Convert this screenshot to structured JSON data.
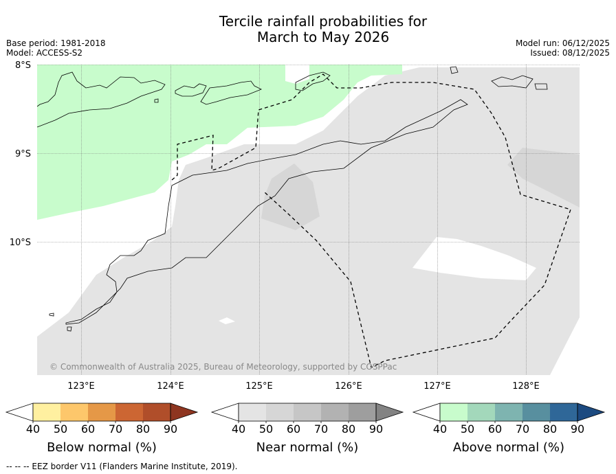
{
  "title": {
    "line1": "Tercile rainfall probabilities for",
    "line2": "March to May 2026"
  },
  "meta": {
    "base_period": "Base period: 1981-2018",
    "model": "Model: ACCESS-S2",
    "model_run": "Model run: 06/12/2025",
    "issued": "Issued: 08/12/2025"
  },
  "map": {
    "lat_labels": [
      "8°S",
      "9°S",
      "10°S"
    ],
    "lon_labels": [
      "123°E",
      "124°E",
      "125°E",
      "126°E",
      "127°E",
      "128°E"
    ],
    "copyright": "© Commonwealth of Australia 2025, Bureau of Meteorology, supported by COSPPac",
    "colors": {
      "land_outline": "#000000",
      "ocean_background": "#ffffff",
      "near_normal_40_50": "#e4e4e4",
      "near_normal_50_60": "#d6d6d6",
      "above_normal_40_50": "#c8fccc"
    }
  },
  "legends": [
    {
      "name": "below-normal",
      "label": "Below normal (%)",
      "ticks": [
        "40",
        "50",
        "60",
        "70",
        "80",
        "90"
      ],
      "colors": [
        "#ffffff",
        "#fff0a0",
        "#fdc76b",
        "#e59847",
        "#cc6633",
        "#b04e2a",
        "#8e3520"
      ]
    },
    {
      "name": "near-normal",
      "label": "Near normal (%)",
      "ticks": [
        "40",
        "50",
        "60",
        "70",
        "80",
        "90"
      ],
      "colors": [
        "#ffffff",
        "#e4e4e4",
        "#d6d6d6",
        "#c6c6c6",
        "#b2b2b2",
        "#9e9e9e",
        "#838383"
      ]
    },
    {
      "name": "above-normal",
      "label": "Above normal (%)",
      "ticks": [
        "40",
        "50",
        "60",
        "70",
        "80",
        "90"
      ],
      "colors": [
        "#ffffff",
        "#c8fccc",
        "#a3d8bb",
        "#7eb4b0",
        "#588f9f",
        "#2f6798",
        "#1c4a80"
      ]
    }
  ],
  "footnote": "--  --  -- EEZ border V11 (Flanders Marine Institute, 2019)."
}
